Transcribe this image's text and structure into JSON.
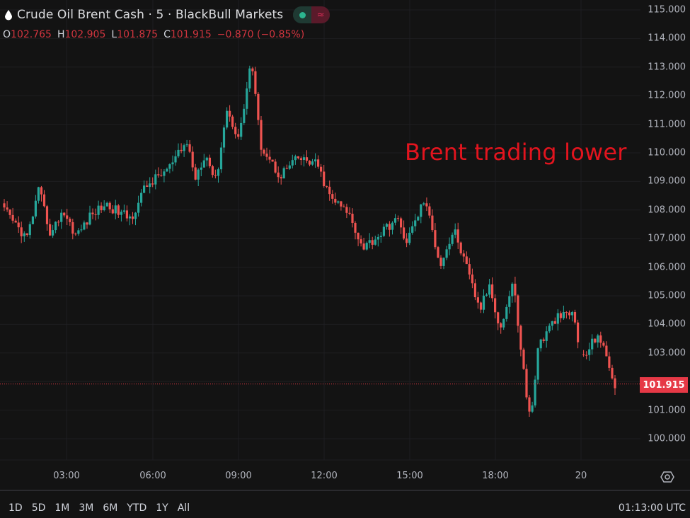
{
  "header": {
    "symbol_icon": "oil-drop-icon",
    "title": "Crude Oil Brent Cash · 5 · BlackBull Markets",
    "market_status_icon": "market-open-dot-icon",
    "indicator_icon": "wave-icon"
  },
  "ohlc": {
    "o_label": "O",
    "o": "102.765",
    "h_label": "H",
    "h": "102.905",
    "l_label": "L",
    "l": "101.875",
    "c_label": "C",
    "c": "101.915",
    "change": "−0.870 (−0.85%)"
  },
  "annotation": "Brent trading lower",
  "last_price": "101.915",
  "colors": {
    "background": "#131313",
    "up": "#26a69a",
    "down": "#ef5350",
    "grid": "#1f1f22",
    "annotation": "#e3141e",
    "last_price_bg": "#e63946"
  },
  "bottom_bar": {
    "ranges": [
      "1D",
      "5D",
      "1M",
      "3M",
      "6M",
      "YTD",
      "1Y",
      "All"
    ],
    "clock": "01:13:00 UTC"
  },
  "chart_data": {
    "type": "candlestick",
    "title": "Crude Oil Brent Cash · 5 · BlackBull Markets",
    "interval": "5 min",
    "xlabel": "",
    "ylabel": "Price",
    "x_ticks": [
      "03:00",
      "06:00",
      "09:00",
      "12:00",
      "15:00",
      "18:00",
      "20"
    ],
    "y_ticks": [
      "115.000",
      "114.000",
      "113.000",
      "112.000",
      "111.000",
      "110.000",
      "109.000",
      "108.000",
      "107.000",
      "106.000",
      "105.000",
      "104.000",
      "103.000",
      "101.000",
      "100.000"
    ],
    "ylim": [
      99.2,
      115.3
    ],
    "grid": true,
    "annotation": "Brent trading lower",
    "last_price": 101.915,
    "last_ohlc": {
      "open": 102.765,
      "high": 102.905,
      "low": 101.875,
      "close": 101.915,
      "change": -0.87,
      "change_pct": -0.85
    },
    "approx_path": [
      {
        "time": "~01:00",
        "price": 108.1
      },
      {
        "time": "~02:00",
        "price": 107.0
      },
      {
        "time": "~02:20",
        "price": 108.7
      },
      {
        "time": "~02:40",
        "price": 107.1
      },
      {
        "time": "~03:00",
        "price": 108.0
      },
      {
        "time": "~03:30",
        "price": 107.1
      },
      {
        "time": "~04:00",
        "price": 107.8
      },
      {
        "time": "~04:30",
        "price": 108.2
      },
      {
        "time": "~05:20",
        "price": 107.7
      },
      {
        "time": "~06:00",
        "price": 108.8
      },
      {
        "time": "~07:00",
        "price": 109.5
      },
      {
        "time": "~07:20",
        "price": 110.4
      },
      {
        "time": "~07:40",
        "price": 109.1
      },
      {
        "time": "~08:00",
        "price": 110.0
      },
      {
        "time": "~08:40",
        "price": 109.0
      },
      {
        "time": "~09:00",
        "price": 111.5
      },
      {
        "time": "~09:20",
        "price": 110.5
      },
      {
        "time": "~09:40",
        "price": 113.3
      },
      {
        "time": "~10:00",
        "price": 110.3
      },
      {
        "time": "~10:40",
        "price": 109.2
      },
      {
        "time": "~11:00",
        "price": 109.8
      },
      {
        "time": "~12:00",
        "price": 109.6
      },
      {
        "time": "~12:20",
        "price": 108.5
      },
      {
        "time": "~13:20",
        "price": 107.8
      },
      {
        "time": "~13:40",
        "price": 106.7
      },
      {
        "time": "~14:00",
        "price": 107.0
      },
      {
        "time": "~14:40",
        "price": 107.7
      },
      {
        "time": "~15:00",
        "price": 106.9
      },
      {
        "time": "~15:40",
        "price": 108.4
      },
      {
        "time": "~16:20",
        "price": 106.1
      },
      {
        "time": "~16:40",
        "price": 107.3
      },
      {
        "time": "~17:20",
        "price": 105.9
      },
      {
        "time": "~17:40",
        "price": 104.5
      },
      {
        "time": "~18:20",
        "price": 105.4
      },
      {
        "time": "~18:40",
        "price": 103.8
      },
      {
        "time": "~19:00",
        "price": 105.5
      },
      {
        "time": "~19:40",
        "price": 101.3
      },
      {
        "time": "~19:50",
        "price": 100.6
      },
      {
        "time": "~20:00",
        "price": 103.2
      },
      {
        "time": "~20:40",
        "price": 104.2
      },
      {
        "time": "~21:20",
        "price": 104.4
      },
      {
        "time": "~21:40",
        "price": 102.7
      },
      {
        "time": "~22:20",
        "price": 103.7
      },
      {
        "time": "~23:00",
        "price": 101.9
      }
    ]
  }
}
